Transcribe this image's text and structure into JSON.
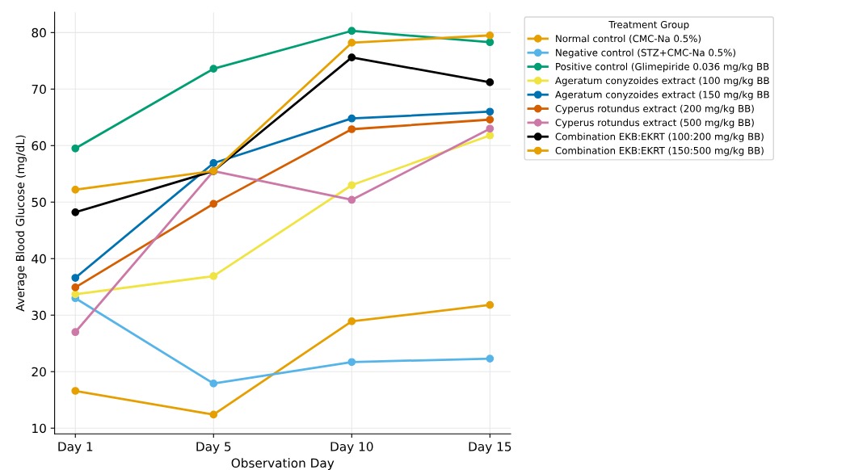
{
  "chart_data": {
    "type": "line",
    "xlabel": "Observation Day",
    "ylabel": "Average Blood Glucose (mg/dL)",
    "legend_title": "Treatment Group",
    "categories": [
      "Day 1",
      "Day 5",
      "Day 10",
      "Day 15"
    ],
    "ylim": [
      9.0,
      83.6
    ],
    "yticks": [
      10,
      20,
      30,
      40,
      50,
      60,
      70,
      80
    ],
    "grid": true,
    "legend": "top right",
    "marker": "circle",
    "line_style": "solid",
    "series": [
      {
        "name": "Normal control (CMC-Na 0.5%)",
        "color": "#e69f00",
        "values": [
          16.6,
          12.4,
          28.9,
          31.8
        ]
      },
      {
        "name": "Negative control (STZ+CMC-Na 0.5%)",
        "color": "#56b4e9",
        "values": [
          33.0,
          17.9,
          21.7,
          22.3
        ]
      },
      {
        "name": "Positive control (Glimepiride 0.036 mg/kg BB",
        "color": "#009e73",
        "values": [
          59.5,
          73.6,
          80.3,
          78.3
        ]
      },
      {
        "name": "Ageratum conyzoides extract (100 mg/kg BB",
        "color": "#f0e442",
        "values": [
          33.7,
          36.9,
          53.0,
          61.8
        ]
      },
      {
        "name": "Ageratum conyzoides extract (150 mg/kg BB",
        "color": "#0072b2",
        "values": [
          36.6,
          56.9,
          64.8,
          66.0
        ]
      },
      {
        "name": "Cyperus rotundus extract (200 mg/kg BB)",
        "color": "#d55e00",
        "values": [
          34.9,
          49.7,
          62.9,
          64.6
        ]
      },
      {
        "name": "Cyperus rotundus extract (500 mg/kg BB)",
        "color": "#cc79a7",
        "values": [
          27.0,
          55.5,
          50.4,
          63.0
        ]
      },
      {
        "name": "Combination EKB:EKRT (100:200 mg/kg BB)",
        "color": "#000000",
        "values": [
          48.2,
          55.5,
          75.6,
          71.2
        ]
      },
      {
        "name": "Combination EKB:EKRT (150:500 mg/kg BB)",
        "color": "#e6a000",
        "values": [
          52.2,
          55.5,
          78.2,
          79.5
        ]
      }
    ]
  }
}
